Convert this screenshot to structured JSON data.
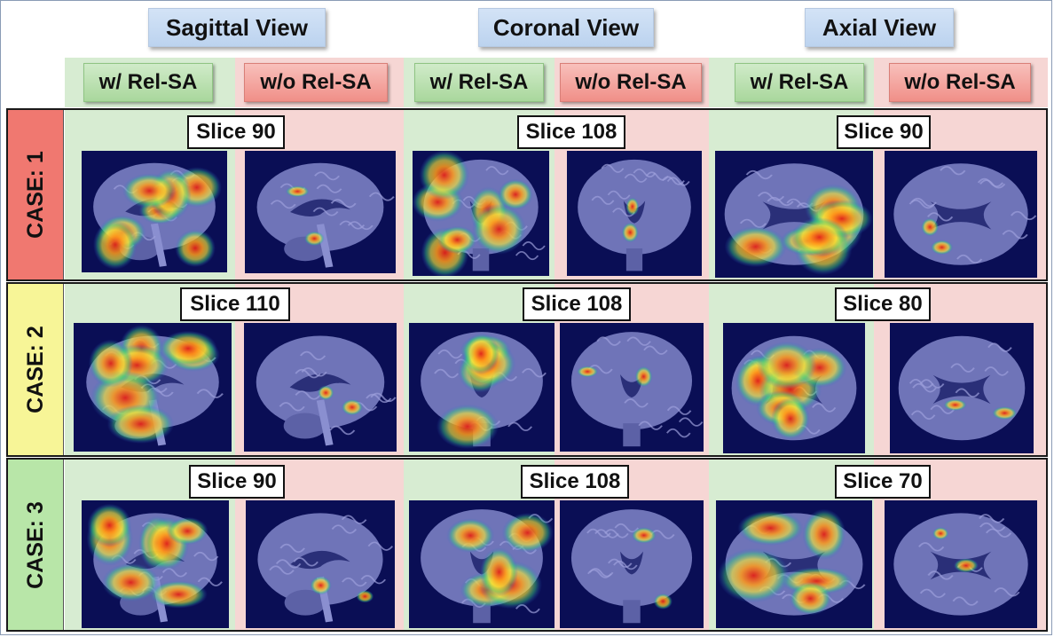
{
  "views": [
    "Sagittal View",
    "Coronal View",
    "Axial View"
  ],
  "variants": {
    "with": "w/ Rel-SA",
    "without": "w/o Rel-SA"
  },
  "cases": [
    {
      "label": "CASE: 1",
      "slices": [
        "Slice 90",
        "Slice 108",
        "Slice 90"
      ]
    },
    {
      "label": "CASE: 2",
      "slices": [
        "Slice 110",
        "Slice 108",
        "Slice 80"
      ]
    },
    {
      "label": "CASE: 3",
      "slices": [
        "Slice 90",
        "Slice 108",
        "Slice 70"
      ]
    }
  ],
  "colors": {
    "view_header": "#c7dbf3",
    "with_band": "#d7ecd2",
    "without_band": "#f6d6d4",
    "case1": "#f07870",
    "case2": "#f7f597",
    "case3": "#b8e6a8",
    "scan_background": "#0a0e55"
  },
  "panels": [
    {
      "case": 0,
      "view": "sagittal",
      "variant": "with",
      "activation": "high"
    },
    {
      "case": 0,
      "view": "sagittal",
      "variant": "without",
      "activation": "low"
    },
    {
      "case": 0,
      "view": "coronal",
      "variant": "with",
      "activation": "high"
    },
    {
      "case": 0,
      "view": "coronal",
      "variant": "without",
      "activation": "low"
    },
    {
      "case": 0,
      "view": "axial",
      "variant": "with",
      "activation": "high"
    },
    {
      "case": 0,
      "view": "axial",
      "variant": "without",
      "activation": "low"
    },
    {
      "case": 1,
      "view": "sagittal",
      "variant": "with",
      "activation": "high"
    },
    {
      "case": 1,
      "view": "sagittal",
      "variant": "without",
      "activation": "low"
    },
    {
      "case": 1,
      "view": "coronal",
      "variant": "with",
      "activation": "medium"
    },
    {
      "case": 1,
      "view": "coronal",
      "variant": "without",
      "activation": "low"
    },
    {
      "case": 1,
      "view": "axial",
      "variant": "with",
      "activation": "high"
    },
    {
      "case": 1,
      "view": "axial",
      "variant": "without",
      "activation": "low"
    },
    {
      "case": 2,
      "view": "sagittal",
      "variant": "with",
      "activation": "high"
    },
    {
      "case": 2,
      "view": "sagittal",
      "variant": "without",
      "activation": "low"
    },
    {
      "case": 2,
      "view": "coronal",
      "variant": "with",
      "activation": "medium"
    },
    {
      "case": 2,
      "view": "coronal",
      "variant": "without",
      "activation": "low"
    },
    {
      "case": 2,
      "view": "axial",
      "variant": "with",
      "activation": "medium"
    },
    {
      "case": 2,
      "view": "axial",
      "variant": "without",
      "activation": "low"
    }
  ]
}
